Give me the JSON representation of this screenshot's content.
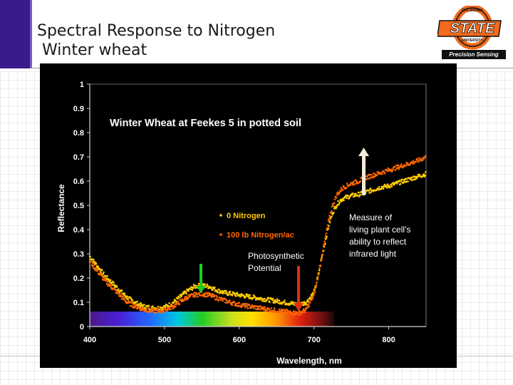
{
  "slide": {
    "title_line1": "Spectral Response to Nitrogen",
    "title_line2": " Winter wheat",
    "logo_word": "STATE",
    "logo_top_text": "OKLAHOMA",
    "logo_sub_text": "UNIVERSITY",
    "logo_ribbon": "Precision Sensing"
  },
  "colors": {
    "series_0n": "#ffcc00",
    "series_100n": "#ff6600",
    "green_arrow": "#22cc22",
    "red_arrow": "#e03010",
    "white_arrow": "#f2ecd6",
    "logo_orange": "#f26a1b"
  },
  "chart_data": {
    "type": "scatter",
    "title": "Winter Wheat at Feekes 5 in potted soil",
    "xlabel": "Wavelength, nm",
    "ylabel": "Reflectance",
    "xlim": [
      400,
      850
    ],
    "ylim": [
      0,
      1
    ],
    "xticks": [
      "400",
      "500",
      "600",
      "700",
      "800"
    ],
    "yticks": [
      "0",
      "0.1",
      "0.2",
      "0.3",
      "0.4",
      "0.5",
      "0.6",
      "0.7",
      "0.8",
      "0.9",
      "1"
    ],
    "grid": false,
    "legend_placement": "center",
    "series": [
      {
        "name": "0 Nitrogen",
        "x": [
          400,
          410,
          420,
          430,
          440,
          450,
          460,
          470,
          480,
          490,
          500,
          510,
          520,
          530,
          540,
          550,
          560,
          570,
          580,
          590,
          600,
          610,
          620,
          630,
          640,
          650,
          660,
          670,
          680,
          690,
          700,
          705,
          710,
          715,
          720,
          725,
          730,
          735,
          740,
          750,
          760,
          770,
          780,
          790,
          800,
          810,
          820,
          830,
          840,
          850
        ],
        "y": [
          0.29,
          0.25,
          0.21,
          0.18,
          0.15,
          0.12,
          0.1,
          0.085,
          0.078,
          0.076,
          0.08,
          0.095,
          0.12,
          0.145,
          0.165,
          0.17,
          0.165,
          0.15,
          0.14,
          0.135,
          0.13,
          0.125,
          0.12,
          0.115,
          0.11,
          0.105,
          0.1,
          0.095,
          0.09,
          0.1,
          0.14,
          0.2,
          0.28,
          0.35,
          0.42,
          0.47,
          0.5,
          0.52,
          0.53,
          0.54,
          0.545,
          0.555,
          0.565,
          0.575,
          0.58,
          0.59,
          0.6,
          0.61,
          0.62,
          0.63
        ]
      },
      {
        "name": "100 lb Nitrogen/ac",
        "x": [
          400,
          410,
          420,
          430,
          440,
          450,
          460,
          470,
          480,
          490,
          500,
          510,
          520,
          530,
          540,
          550,
          560,
          570,
          580,
          590,
          600,
          610,
          620,
          630,
          640,
          650,
          660,
          670,
          680,
          690,
          700,
          705,
          710,
          715,
          720,
          725,
          730,
          735,
          740,
          750,
          760,
          770,
          780,
          790,
          800,
          810,
          820,
          830,
          840,
          850
        ],
        "y": [
          0.27,
          0.23,
          0.19,
          0.16,
          0.13,
          0.1,
          0.085,
          0.072,
          0.066,
          0.064,
          0.068,
          0.08,
          0.1,
          0.12,
          0.13,
          0.135,
          0.13,
          0.118,
          0.108,
          0.098,
          0.09,
          0.085,
          0.08,
          0.075,
          0.07,
          0.066,
          0.062,
          0.058,
          0.055,
          0.07,
          0.13,
          0.2,
          0.28,
          0.36,
          0.44,
          0.5,
          0.54,
          0.56,
          0.575,
          0.59,
          0.6,
          0.615,
          0.625,
          0.635,
          0.645,
          0.655,
          0.665,
          0.675,
          0.685,
          0.7
        ]
      }
    ],
    "annotations": [
      {
        "text_lines": [
          "Photosynthetic",
          "Potential"
        ],
        "points_to_x": [
          550,
          682
        ]
      },
      {
        "text_lines": [
          "Measure of",
          "living plant cell's",
          "ability to reflect",
          "infrared light"
        ],
        "points_to_x": [
          765
        ]
      }
    ]
  }
}
